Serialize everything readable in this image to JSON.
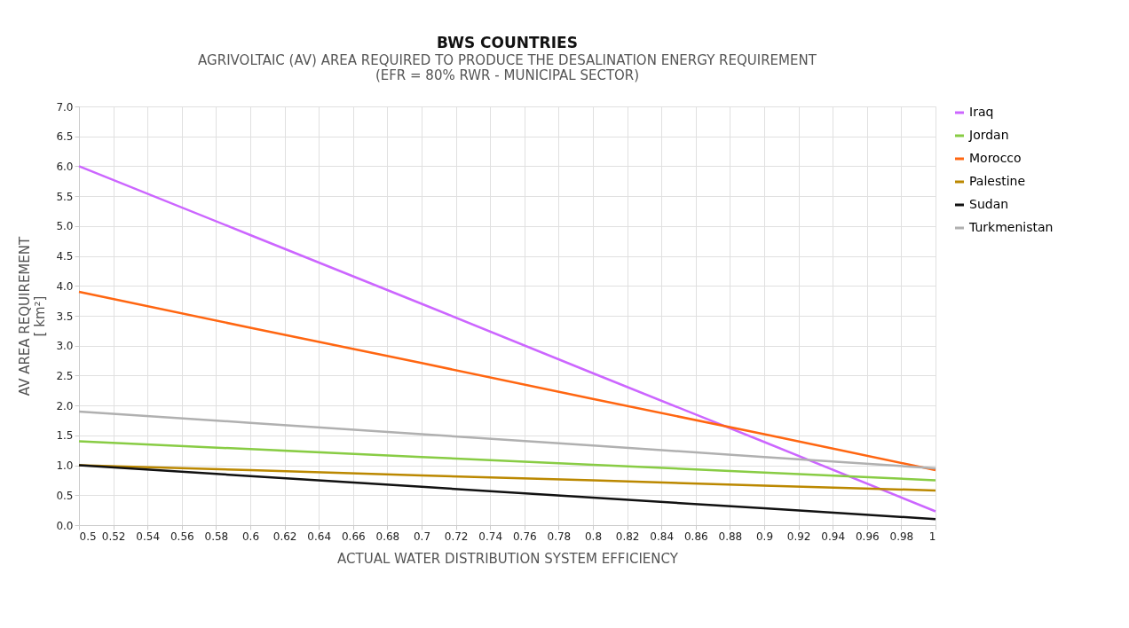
{
  "chart_data": {
    "type": "line",
    "title": "BWS COUNTRIES",
    "subtitle": "AGRIVOLTAIC (AV) AREA REQUIRED TO PRODUCE THE DESALINATION ENERGY REQUIREMENT\n(EFR = 80% RWR - MUNICIPAL SECTOR)",
    "xlabel": "ACTUAL WATER DISTRIBUTION SYSTEM EFFICIENCY",
    "ylabel": "AV AREA REQUIREMENT\n[ km²]",
    "x": [
      0.5,
      0.6,
      0.7,
      0.8,
      0.9,
      1.0
    ],
    "series": [
      {
        "name": "Iraq",
        "color": "#cc66ff",
        "values": [
          6.0,
          4.85,
          3.7,
          2.54,
          1.39,
          0.23
        ]
      },
      {
        "name": "Jordan",
        "color": "#88cc44",
        "values": [
          1.4,
          1.27,
          1.14,
          1.01,
          0.88,
          0.75
        ]
      },
      {
        "name": "Morocco",
        "color": "#ff6611",
        "values": [
          3.9,
          3.3,
          2.71,
          2.11,
          1.52,
          0.92
        ]
      },
      {
        "name": "Palestine",
        "color": "#bb8800",
        "values": [
          1.0,
          0.92,
          0.83,
          0.75,
          0.66,
          0.58
        ]
      },
      {
        "name": "Sudan",
        "color": "#111111",
        "values": [
          1.0,
          0.82,
          0.64,
          0.46,
          0.28,
          0.1
        ]
      },
      {
        "name": "Turkmenistan",
        "color": "#b0b0b0",
        "values": [
          1.9,
          1.71,
          1.52,
          1.33,
          1.14,
          0.95
        ]
      }
    ],
    "xlim": [
      0.5,
      1.0
    ],
    "xticks": [
      0.5,
      0.52,
      0.54,
      0.56,
      0.58,
      0.6,
      0.62,
      0.64,
      0.66,
      0.68,
      0.7,
      0.72,
      0.74,
      0.76,
      0.78,
      0.8,
      0.82,
      0.84,
      0.86,
      0.88,
      0.9,
      0.92,
      0.94,
      0.96,
      0.98,
      1
    ],
    "ylim": [
      0,
      7
    ],
    "yticks": [
      {
        "value": 0,
        "label": "0.0"
      },
      0.5,
      {
        "value": 1,
        "label": "1.0"
      },
      1.5,
      {
        "value": 2,
        "label": "2.0"
      },
      2.5,
      {
        "value": 3,
        "label": "3.0"
      },
      3.5,
      {
        "value": 4,
        "label": "4.0"
      },
      4.5,
      {
        "value": 5,
        "label": "5.0"
      },
      5.5,
      {
        "value": 6,
        "label": "6.0"
      },
      6.5,
      {
        "value": 7,
        "label": "7.0"
      }
    ],
    "grid": true,
    "legend": "right",
    "marker": "none",
    "line_style": "solid"
  }
}
